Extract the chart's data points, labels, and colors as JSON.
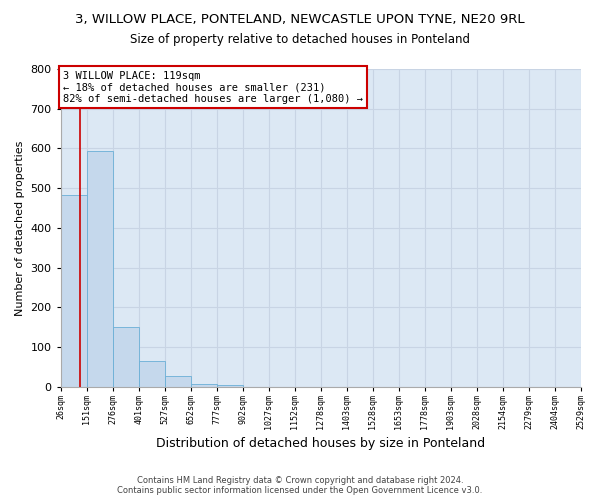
{
  "title": "3, WILLOW PLACE, PONTELAND, NEWCASTLE UPON TYNE, NE20 9RL",
  "subtitle": "Size of property relative to detached houses in Ponteland",
  "xlabel": "Distribution of detached houses by size in Ponteland",
  "ylabel": "Number of detached properties",
  "bar_values": [
    483,
    593,
    150,
    65,
    28,
    8,
    5,
    0,
    0,
    0,
    0,
    0,
    0,
    0,
    0,
    0,
    0,
    0,
    0,
    0
  ],
  "bin_labels": [
    "26sqm",
    "151sqm",
    "276sqm",
    "401sqm",
    "527sqm",
    "652sqm",
    "777sqm",
    "902sqm",
    "1027sqm",
    "1152sqm",
    "1278sqm",
    "1403sqm",
    "1528sqm",
    "1653sqm",
    "1778sqm",
    "1903sqm",
    "2028sqm",
    "2154sqm",
    "2279sqm",
    "2404sqm",
    "2529sqm"
  ],
  "bar_color": "#c5d8ec",
  "bar_edge_color": "#6aafd6",
  "annotation_title": "3 WILLOW PLACE: 119sqm",
  "annotation_line1": "← 18% of detached houses are smaller (231)",
  "annotation_line2": "82% of semi-detached houses are larger (1,080) →",
  "annotation_box_color": "#ffffff",
  "annotation_box_edge_color": "#cc0000",
  "property_line_color": "#cc0000",
  "ylim": [
    0,
    800
  ],
  "yticks": [
    0,
    100,
    200,
    300,
    400,
    500,
    600,
    700,
    800
  ],
  "grid_color": "#c8d4e4",
  "background_color": "#dce8f4",
  "footer_line1": "Contains HM Land Registry data © Crown copyright and database right 2024.",
  "footer_line2": "Contains public sector information licensed under the Open Government Licence v3.0.",
  "figsize": [
    6.0,
    5.0
  ],
  "dpi": 100
}
